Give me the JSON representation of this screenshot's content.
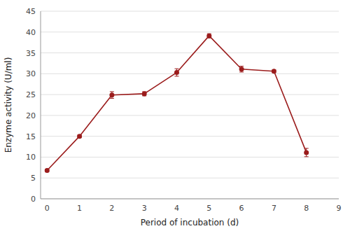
{
  "chart_data": {
    "type": "line",
    "x": [
      0,
      1,
      2,
      3,
      4,
      5,
      6,
      7,
      8
    ],
    "values": [
      6.8,
      15.0,
      24.9,
      25.2,
      30.3,
      39.1,
      31.1,
      30.6,
      11.1
    ],
    "errors": [
      0.3,
      0.3,
      0.8,
      0.5,
      0.9,
      0.5,
      0.7,
      0.3,
      1.0
    ],
    "color": "#9b1c1c",
    "marker": "circle",
    "xlabel": "Period of incubation (d)",
    "ylabel": "Enzyme activity (U/ml)",
    "xlim": [
      -0.2,
      9
    ],
    "ylim": [
      0,
      45
    ],
    "xticks": [
      0,
      1,
      2,
      3,
      4,
      5,
      6,
      7,
      8,
      9
    ],
    "yticks": [
      0,
      5,
      10,
      15,
      20,
      25,
      30,
      35,
      40,
      45
    ],
    "grid": "y"
  }
}
